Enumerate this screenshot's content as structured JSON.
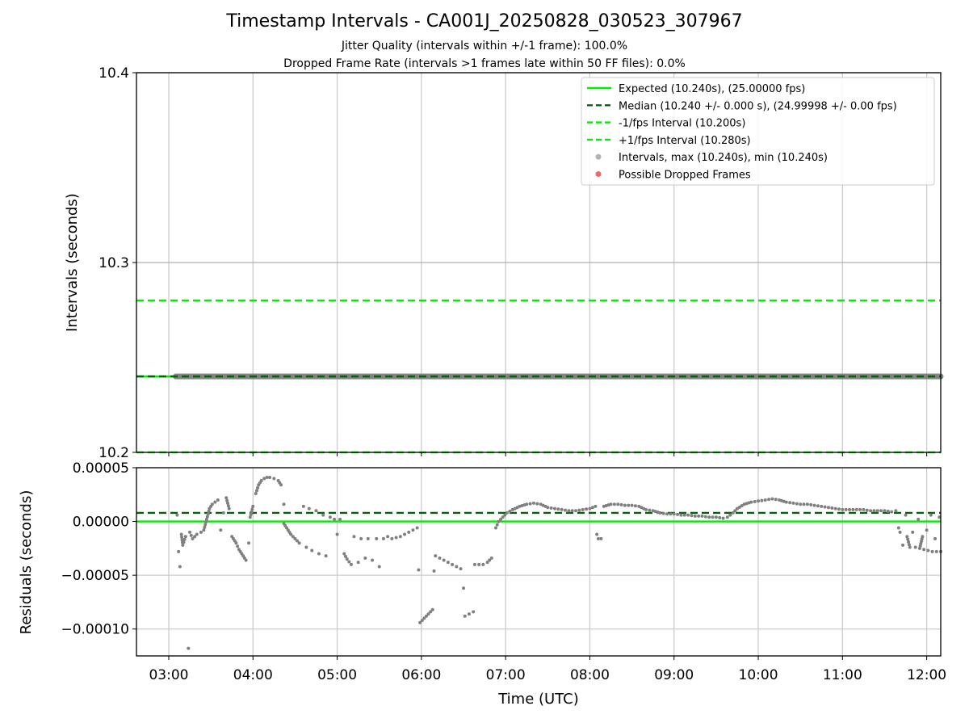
{
  "title": "Timestamp Intervals - CA001J_20250828_030523_307967",
  "subtitle1": "Jitter Quality (intervals within +/-1 frame): 100.0%",
  "subtitle2": "Dropped Frame Rate (intervals >1 frames late within 50 FF files): 0.0%",
  "colors": {
    "expected": "#00ee00",
    "median": "#006400",
    "band": "#00ee00",
    "points": "#808080",
    "dropped": "#f06060"
  },
  "chart_data": [
    {
      "type": "scatter",
      "ylabel": "Intervals (seconds)",
      "ylim": [
        10.2,
        10.4
      ],
      "yticks": [
        "10.2",
        "10.3",
        "10.4"
      ],
      "xlim": [
        "02:37",
        "12:10"
      ],
      "grid": true,
      "legend_position": "top-right",
      "hlines": {
        "expected": 10.24,
        "median": 10.24,
        "minus_fps": 10.2,
        "plus_fps": 10.28
      },
      "intervals": {
        "x_start": "03:05",
        "x_end": "12:10",
        "value": 10.24
      },
      "legend": [
        {
          "key": "expected",
          "label": "Expected (10.240s), (25.00000 fps)"
        },
        {
          "key": "median",
          "label": "Median (10.240 +/- 0.000 s), (24.99998 +/- 0.00 fps)"
        },
        {
          "key": "minus",
          "label": "-1/fps Interval (10.200s)"
        },
        {
          "key": "plus",
          "label": "+1/fps Interval (10.280s)"
        },
        {
          "key": "intervals",
          "label": "Intervals, max (10.240s), min (10.240s)"
        },
        {
          "key": "dropped",
          "label": "Possible Dropped Frames"
        }
      ]
    },
    {
      "type": "scatter",
      "xlabel": "Time (UTC)",
      "ylabel": "Residuals (seconds)",
      "ylim": [
        -0.000125,
        5e-05
      ],
      "yticks": [
        "0.00005",
        "0.00000",
        "−0.00005",
        "−0.00010"
      ],
      "xticks": [
        "03:00",
        "04:00",
        "05:00",
        "06:00",
        "07:00",
        "08:00",
        "09:00",
        "10:00",
        "11:00",
        "12:00"
      ],
      "grid": true,
      "hlines": {
        "expected": 0.0,
        "median": 8e-06
      },
      "series": [
        {
          "values": [
            [
              "03:06",
              6e-06
            ],
            [
              "03:07",
              -2.8e-05
            ],
            [
              "03:08",
              -4.2e-05
            ],
            [
              "03:09",
              -1.2e-05
            ],
            [
              "03:10",
              -2.2e-05
            ],
            [
              "03:12",
              -1.4e-05
            ],
            [
              "03:14",
              -0.000118
            ],
            [
              "03:15",
              -1e-05
            ],
            [
              "03:17",
              -1.6e-05
            ],
            [
              "03:20",
              -1.2e-05
            ],
            [
              "03:23",
              -1e-05
            ],
            [
              "03:25",
              -8e-06
            ],
            [
              "03:27",
              2e-06
            ],
            [
              "03:29",
              1.2e-05
            ],
            [
              "03:31",
              1.6e-05
            ],
            [
              "03:33",
              1.8e-05
            ],
            [
              "03:35",
              2e-05
            ],
            [
              "03:37",
              -8e-06
            ],
            [
              "03:39",
              8e-06
            ],
            [
              "03:41",
              2.2e-05
            ],
            [
              "03:43",
              1.2e-05
            ],
            [
              "03:45",
              -1.4e-05
            ],
            [
              "03:48",
              -2e-05
            ],
            [
              "03:50",
              -2.6e-05
            ],
            [
              "03:53",
              -3.2e-05
            ],
            [
              "03:55",
              -3.6e-05
            ],
            [
              "03:57",
              -2e-05
            ],
            [
              "03:58",
              4e-06
            ],
            [
              "04:00",
              1.4e-05
            ],
            [
              "04:02",
              2.6e-05
            ],
            [
              "04:04",
              3.4e-05
            ],
            [
              "04:06",
              3.8e-05
            ],
            [
              "04:08",
              4e-05
            ],
            [
              "04:10",
              4.1e-05
            ],
            [
              "04:12",
              4.1e-05
            ],
            [
              "04:15",
              4e-05
            ],
            [
              "04:18",
              3.8e-05
            ],
            [
              "04:20",
              3.4e-05
            ],
            [
              "04:22",
              1.6e-05
            ],
            [
              "04:22",
              -2e-06
            ],
            [
              "04:25",
              -8e-06
            ],
            [
              "04:27",
              -1.2e-05
            ],
            [
              "04:30",
              -1.6e-05
            ],
            [
              "04:33",
              -2e-05
            ],
            [
              "04:36",
              1.4e-05
            ],
            [
              "04:38",
              -2.4e-05
            ],
            [
              "04:40",
              1.2e-05
            ],
            [
              "04:42",
              -2.7e-05
            ],
            [
              "04:45",
              1e-05
            ],
            [
              "04:47",
              -3e-05
            ],
            [
              "04:50",
              6e-06
            ],
            [
              "04:52",
              -3.2e-05
            ],
            [
              "04:55",
              4e-06
            ],
            [
              "04:58",
              2e-06
            ],
            [
              "05:00",
              -1.2e-05
            ],
            [
              "05:02",
              2e-06
            ],
            [
              "05:05",
              -3e-05
            ],
            [
              "05:07",
              -3.5e-05
            ],
            [
              "05:10",
              -4e-05
            ],
            [
              "05:12",
              -1.4e-05
            ],
            [
              "05:15",
              -3.8e-05
            ],
            [
              "05:17",
              -1.6e-05
            ],
            [
              "05:20",
              -3.4e-05
            ],
            [
              "05:22",
              -1.6e-05
            ],
            [
              "05:25",
              -3.6e-05
            ],
            [
              "05:28",
              -1.6e-05
            ],
            [
              "05:30",
              -4.2e-05
            ],
            [
              "05:33",
              -1.6e-05
            ],
            [
              "05:36",
              -1.4e-05
            ],
            [
              "05:39",
              -1.6e-05
            ],
            [
              "05:42",
              -1.5e-05
            ],
            [
              "05:45",
              -1.4e-05
            ],
            [
              "05:48",
              -1.2e-05
            ],
            [
              "05:51",
              -1e-05
            ],
            [
              "05:54",
              -8e-06
            ],
            [
              "05:57",
              -6e-06
            ],
            [
              "05:58",
              -4.5e-05
            ],
            [
              "05:59",
              -9.4e-05
            ],
            [
              "06:02",
              -9e-05
            ],
            [
              "06:05",
              -8.6e-05
            ],
            [
              "06:08",
              -8.2e-05
            ],
            [
              "06:09",
              -4.6e-05
            ],
            [
              "06:10",
              -3.2e-05
            ],
            [
              "06:13",
              -3.4e-05
            ],
            [
              "06:16",
              -3.6e-05
            ],
            [
              "06:19",
              -3.8e-05
            ],
            [
              "06:22",
              -4e-05
            ],
            [
              "06:25",
              -4.2e-05
            ],
            [
              "06:28",
              -4.4e-05
            ],
            [
              "06:30",
              -6.2e-05
            ],
            [
              "06:31",
              -8.8e-05
            ],
            [
              "06:34",
              -8.6e-05
            ],
            [
              "06:37",
              -8.4e-05
            ],
            [
              "06:38",
              -4e-05
            ],
            [
              "06:41",
              -4e-05
            ],
            [
              "06:44",
              -4e-05
            ],
            [
              "06:47",
              -3.8e-05
            ],
            [
              "06:50",
              -3.4e-05
            ],
            [
              "06:53",
              -6e-06
            ],
            [
              "06:55",
              0.0
            ],
            [
              "06:58",
              4e-06
            ],
            [
              "07:01",
              8e-06
            ],
            [
              "07:05",
              1.1e-05
            ],
            [
              "07:10",
              1.4e-05
            ],
            [
              "07:15",
              1.6e-05
            ],
            [
              "07:20",
              1.7e-05
            ],
            [
              "07:25",
              1.6e-05
            ],
            [
              "07:30",
              1.3e-05
            ],
            [
              "07:35",
              1.2e-05
            ],
            [
              "07:40",
              1.1e-05
            ],
            [
              "07:45",
              1e-05
            ],
            [
              "07:50",
              1e-05
            ],
            [
              "07:55",
              1.1e-05
            ],
            [
              "08:00",
              1.2e-05
            ],
            [
              "08:04",
              1.4e-05
            ],
            [
              "08:05",
              -1.2e-05
            ],
            [
              "08:06",
              -1.6e-05
            ],
            [
              "08:08",
              -1.6e-05
            ],
            [
              "08:10",
              1.4e-05
            ],
            [
              "08:15",
              1.6e-05
            ],
            [
              "08:20",
              1.6e-05
            ],
            [
              "08:25",
              1.5e-05
            ],
            [
              "08:30",
              1.5e-05
            ],
            [
              "08:35",
              1.4e-05
            ],
            [
              "08:40",
              1.1e-05
            ],
            [
              "08:45",
              1e-05
            ],
            [
              "08:50",
              8e-06
            ],
            [
              "08:55",
              7e-06
            ],
            [
              "09:00",
              7e-06
            ],
            [
              "09:05",
              6e-06
            ],
            [
              "09:10",
              6e-06
            ],
            [
              "09:15",
              5e-06
            ],
            [
              "09:20",
              5e-06
            ],
            [
              "09:25",
              4e-06
            ],
            [
              "09:30",
              4e-06
            ],
            [
              "09:35",
              3e-06
            ],
            [
              "09:38",
              4e-06
            ],
            [
              "09:42",
              8e-06
            ],
            [
              "09:45",
              1.2e-05
            ],
            [
              "09:50",
              1.6e-05
            ],
            [
              "09:55",
              1.8e-05
            ],
            [
              "10:00",
              1.9e-05
            ],
            [
              "10:05",
              2e-05
            ],
            [
              "10:10",
              2.1e-05
            ],
            [
              "10:15",
              2e-05
            ],
            [
              "10:20",
              1.8e-05
            ],
            [
              "10:25",
              1.7e-05
            ],
            [
              "10:30",
              1.6e-05
            ],
            [
              "10:35",
              1.6e-05
            ],
            [
              "10:40",
              1.5e-05
            ],
            [
              "10:45",
              1.4e-05
            ],
            [
              "10:50",
              1.3e-05
            ],
            [
              "10:55",
              1.2e-05
            ],
            [
              "11:00",
              1.1e-05
            ],
            [
              "11:05",
              1.1e-05
            ],
            [
              "11:10",
              1.1e-05
            ],
            [
              "11:15",
              1.1e-05
            ],
            [
              "11:20",
              1e-05
            ],
            [
              "11:25",
              1e-05
            ],
            [
              "11:30",
              1e-05
            ],
            [
              "11:35",
              9e-06
            ],
            [
              "11:38",
              1e-05
            ],
            [
              "11:40",
              -6e-06
            ],
            [
              "11:41",
              -1e-05
            ],
            [
              "11:43",
              -2.2e-05
            ],
            [
              "11:45",
              6e-06
            ],
            [
              "11:46",
              -1.4e-05
            ],
            [
              "11:48",
              -2.4e-05
            ],
            [
              "11:50",
              -1e-05
            ],
            [
              "11:52",
              -2.4e-05
            ],
            [
              "11:54",
              2e-06
            ],
            [
              "11:55",
              -2.5e-05
            ],
            [
              "11:57",
              -1.4e-05
            ],
            [
              "11:58",
              -2.6e-05
            ],
            [
              "12:00",
              -8e-06
            ],
            [
              "12:01",
              -2.7e-05
            ],
            [
              "12:03",
              6e-06
            ],
            [
              "12:04",
              -2.8e-05
            ],
            [
              "12:06",
              -1.6e-05
            ],
            [
              "12:07",
              -2.8e-05
            ],
            [
              "12:09",
              4e-06
            ],
            [
              "12:10",
              -2.8e-05
            ]
          ]
        }
      ]
    }
  ]
}
